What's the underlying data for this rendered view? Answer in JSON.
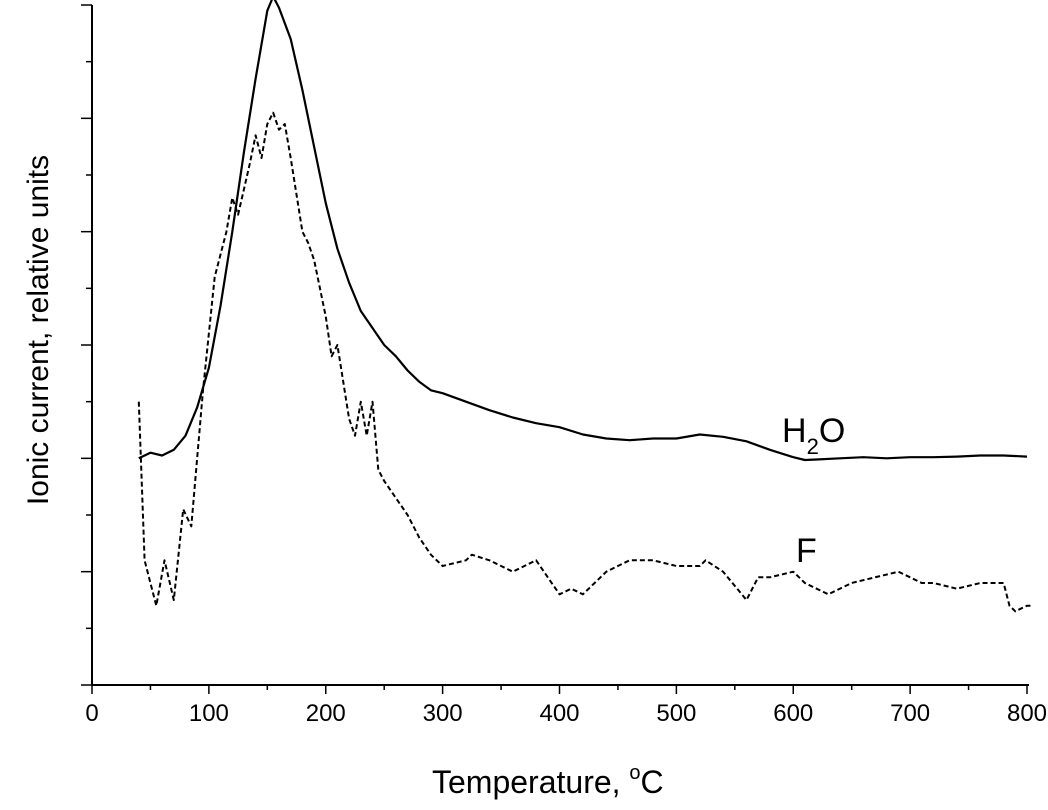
{
  "chart_data": {
    "type": "line",
    "xlabel": "Temperature, ",
    "xlabel_unit": "C",
    "xlabel_degree": "o",
    "ylabel": "Ionic current, relative units",
    "xlim": [
      0,
      800
    ],
    "ylim": [
      0,
      12
    ],
    "x_ticks": [
      0,
      100,
      200,
      300,
      400,
      500,
      600,
      700,
      800
    ],
    "x_tick_labels": [
      "0",
      "100",
      "200",
      "300",
      "400",
      "500",
      "600",
      "700",
      "800"
    ],
    "y_tick_labels_shown": false,
    "grid": false,
    "series": [
      {
        "label_main": "H",
        "label_sub": "2",
        "label_tail": "O",
        "style": "solid",
        "x": [
          40,
          50,
          60,
          70,
          80,
          90,
          100,
          110,
          120,
          130,
          140,
          150,
          155,
          160,
          170,
          180,
          190,
          200,
          210,
          220,
          230,
          240,
          250,
          260,
          270,
          280,
          290,
          300,
          320,
          340,
          360,
          380,
          400,
          420,
          440,
          460,
          480,
          500,
          520,
          540,
          560,
          580,
          600,
          610,
          620,
          640,
          660,
          680,
          700,
          720,
          740,
          760,
          780,
          800
        ],
        "y": [
          4.0,
          4.1,
          4.05,
          4.15,
          4.4,
          4.9,
          5.6,
          6.7,
          8.0,
          9.4,
          10.7,
          11.9,
          12.15,
          11.95,
          11.4,
          10.5,
          9.5,
          8.5,
          7.7,
          7.1,
          6.6,
          6.3,
          6.0,
          5.8,
          5.55,
          5.35,
          5.2,
          5.15,
          5.0,
          4.85,
          4.72,
          4.62,
          4.55,
          4.42,
          4.35,
          4.32,
          4.35,
          4.35,
          4.42,
          4.38,
          4.3,
          4.15,
          4.02,
          3.97,
          3.98,
          4.0,
          4.02,
          4.0,
          4.02,
          4.02,
          4.03,
          4.05,
          4.05,
          4.03
        ]
      },
      {
        "label": "F",
        "style": "dashed",
        "x": [
          40,
          45,
          50,
          55,
          62,
          70,
          78,
          85,
          95,
          105,
          115,
          120,
          125,
          135,
          140,
          145,
          150,
          155,
          160,
          165,
          170,
          180,
          185,
          190,
          200,
          205,
          210,
          220,
          225,
          230,
          235,
          240,
          245,
          250,
          260,
          270,
          280,
          290,
          300,
          320,
          325,
          340,
          360,
          370,
          380,
          390,
          400,
          410,
          420,
          440,
          450,
          460,
          480,
          500,
          520,
          525,
          540,
          560,
          570,
          580,
          600,
          610,
          620,
          630,
          650,
          670,
          690,
          700,
          710,
          720,
          740,
          760,
          780,
          785,
          790,
          800,
          805
        ],
        "y": [
          5.0,
          2.2,
          1.8,
          1.4,
          2.2,
          1.5,
          3.1,
          2.8,
          5.2,
          7.2,
          8.0,
          8.6,
          8.3,
          9.2,
          9.7,
          9.3,
          9.9,
          10.1,
          9.8,
          9.9,
          9.3,
          8.0,
          7.8,
          7.5,
          6.5,
          5.8,
          6.0,
          4.7,
          4.4,
          5.0,
          4.4,
          5.0,
          3.8,
          3.6,
          3.3,
          3.0,
          2.6,
          2.3,
          2.1,
          2.2,
          2.3,
          2.2,
          2.0,
          2.1,
          2.2,
          1.9,
          1.6,
          1.7,
          1.6,
          2.0,
          2.1,
          2.2,
          2.2,
          2.1,
          2.1,
          2.2,
          2.0,
          1.5,
          1.9,
          1.9,
          2.0,
          1.8,
          1.7,
          1.6,
          1.8,
          1.9,
          2.0,
          1.9,
          1.8,
          1.8,
          1.7,
          1.8,
          1.8,
          1.4,
          1.3,
          1.4,
          1.4
        ]
      }
    ]
  }
}
